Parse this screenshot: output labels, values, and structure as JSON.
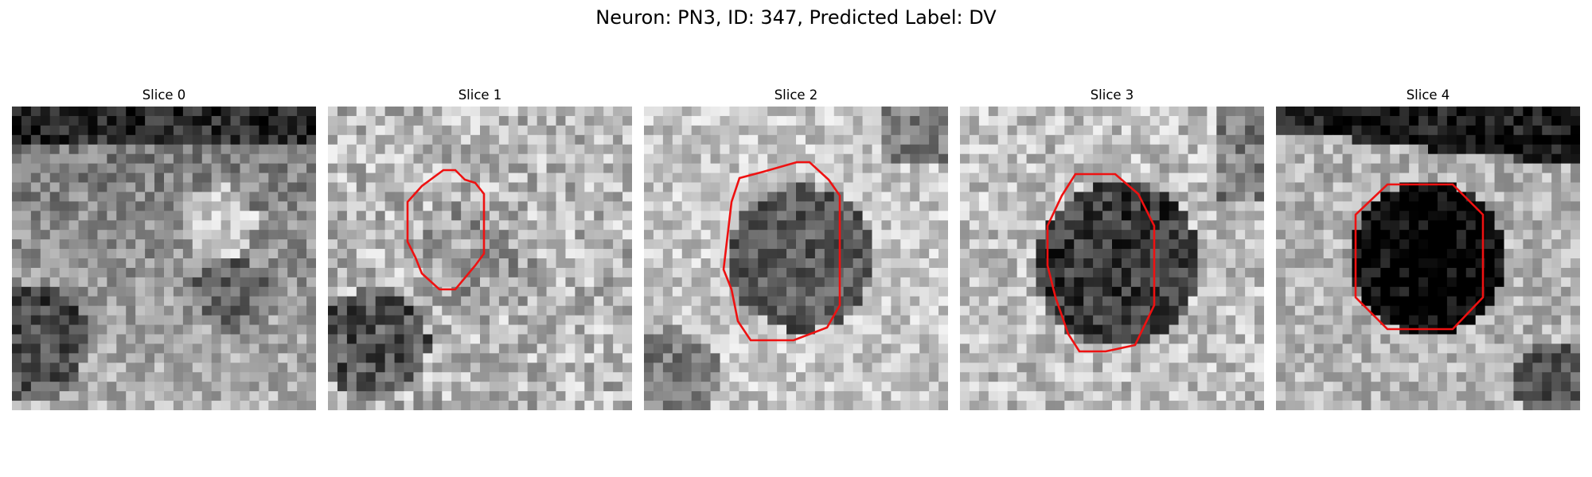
{
  "figure": {
    "title": "Neuron: PN3, ID: 347, Predicted Label: DV"
  },
  "contour_color": "#ee1111",
  "panels": [
    {
      "title": "Slice 0"
    },
    {
      "title": "Slice 1"
    },
    {
      "title": "Slice 2"
    },
    {
      "title": "Slice 3"
    },
    {
      "title": "Slice 4"
    }
  ]
}
